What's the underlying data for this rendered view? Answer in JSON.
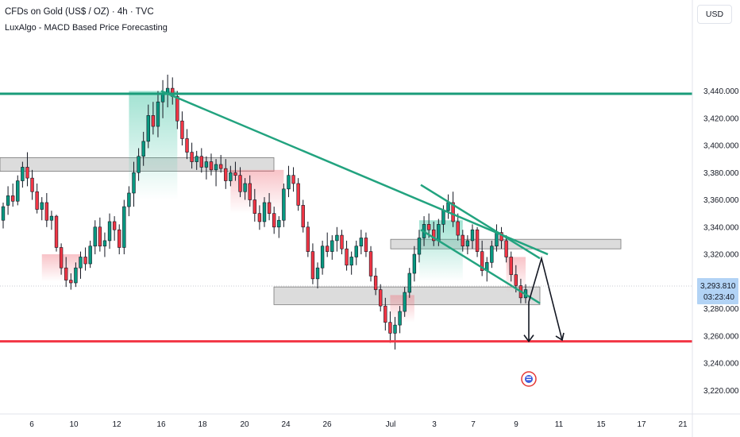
{
  "header": {
    "title": "CFDs on Gold (US$ / OZ) · 4h · TVC",
    "indicator": "LuxAlgo - MACD Based Price Forecasting"
  },
  "currency_button": "USD",
  "price_badge": {
    "price": "3,293.810",
    "countdown": "03:23:40"
  },
  "colors": {
    "up": "#089981",
    "down": "#f23645",
    "trendline": "#22a37f",
    "resistance": "#1a9c7a",
    "support": "#f23645",
    "zone": "#d6d6d6",
    "badge": "#b2d3f5",
    "bull_fill": "#2fbf9b",
    "bear_fill": "#f07a84"
  },
  "chart_data": {
    "type": "candlestick",
    "timeframe": "4h",
    "y_range": [
      3212,
      3466
    ],
    "y_ticks": [
      "3,440.000",
      "3,420.000",
      "3,400.000",
      "3,380.000",
      "3,360.000",
      "3,340.000",
      "3,320.000",
      "3,300.000",
      "3,280.000",
      "3,260.000",
      "3,240.000",
      "3,220.000"
    ],
    "x_ticks": [
      "6",
      "10",
      "12",
      "16",
      "18",
      "20",
      "24",
      "26",
      "Jul",
      "3",
      "7",
      "9",
      "11",
      "15",
      "17",
      "21"
    ],
    "horizontal_levels": [
      {
        "role": "resistance",
        "price": 3438
      },
      {
        "role": "support",
        "price": 3256
      }
    ],
    "zones": [
      {
        "from": "start",
        "to": "Jun 23",
        "price_low": 3381,
        "price_high": 3391
      },
      {
        "from": "Jun 23",
        "to": "Jul 10",
        "price_low": 3283,
        "price_high": 3296
      },
      {
        "from": "Jul 1",
        "to": "Jul 13",
        "price_low": 3324,
        "price_high": 3331
      }
    ],
    "trendlines": [
      {
        "from": [
          "Jun 16",
          3440
        ],
        "to": [
          "Jul 10",
          3320
        ]
      },
      {
        "from": [
          "Jun 30",
          3371
        ],
        "to": [
          "Jul 10",
          3317
        ]
      },
      {
        "from": [
          "Jun 30",
          3338
        ],
        "to": [
          "Jul 10",
          3284
        ]
      }
    ],
    "projection_arrows": [
      {
        "path": [
          [
            "Jul 10",
            3285
          ],
          [
            "Jul 10",
            3256
          ]
        ]
      },
      {
        "path": [
          [
            "Jul 10",
            3285
          ],
          [
            "Jul 10",
            3317
          ],
          [
            "Jul 11",
            3257
          ]
        ]
      }
    ],
    "candles": [
      [
        3345,
        3358,
        3339,
        3355
      ],
      [
        3356,
        3370,
        3349,
        3363
      ],
      [
        3363,
        3372,
        3355,
        3359
      ],
      [
        3359,
        3378,
        3356,
        3374
      ],
      [
        3374,
        3388,
        3369,
        3384
      ],
      [
        3384,
        3395,
        3370,
        3376
      ],
      [
        3376,
        3382,
        3360,
        3366
      ],
      [
        3366,
        3372,
        3350,
        3353
      ],
      [
        3353,
        3362,
        3345,
        3358
      ],
      [
        3358,
        3365,
        3340,
        3345
      ],
      [
        3345,
        3352,
        3338,
        3348
      ],
      [
        3348,
        3349,
        3322,
        3325
      ],
      [
        3325,
        3328,
        3305,
        3310
      ],
      [
        3310,
        3318,
        3296,
        3301
      ],
      [
        3301,
        3306,
        3294,
        3299
      ],
      [
        3299,
        3314,
        3296,
        3310
      ],
      [
        3310,
        3322,
        3302,
        3318
      ],
      [
        3318,
        3325,
        3308,
        3313
      ],
      [
        3313,
        3330,
        3310,
        3326
      ],
      [
        3326,
        3345,
        3320,
        3340
      ],
      [
        3340,
        3347,
        3322,
        3326
      ],
      [
        3326,
        3336,
        3318,
        3330
      ],
      [
        3330,
        3350,
        3324,
        3344
      ],
      [
        3344,
        3348,
        3330,
        3338
      ],
      [
        3338,
        3342,
        3320,
        3325
      ],
      [
        3325,
        3360,
        3320,
        3355
      ],
      [
        3355,
        3370,
        3348,
        3365
      ],
      [
        3365,
        3388,
        3355,
        3380
      ],
      [
        3380,
        3398,
        3374,
        3392
      ],
      [
        3392,
        3410,
        3385,
        3403
      ],
      [
        3403,
        3430,
        3398,
        3422
      ],
      [
        3422,
        3432,
        3408,
        3414
      ],
      [
        3414,
        3440,
        3406,
        3432
      ],
      [
        3432,
        3448,
        3420,
        3438
      ],
      [
        3438,
        3452,
        3428,
        3442
      ],
      [
        3442,
        3450,
        3430,
        3436
      ],
      [
        3436,
        3440,
        3412,
        3418
      ],
      [
        3418,
        3425,
        3400,
        3405
      ],
      [
        3405,
        3412,
        3390,
        3395
      ],
      [
        3395,
        3402,
        3383,
        3388
      ],
      [
        3388,
        3396,
        3382,
        3392
      ],
      [
        3392,
        3398,
        3380,
        3384
      ],
      [
        3384,
        3392,
        3375,
        3388
      ],
      [
        3388,
        3394,
        3378,
        3382
      ],
      [
        3382,
        3390,
        3370,
        3386
      ],
      [
        3386,
        3393,
        3380,
        3383
      ],
      [
        3383,
        3390,
        3368,
        3374
      ],
      [
        3374,
        3385,
        3370,
        3380
      ],
      [
        3380,
        3388,
        3374,
        3378
      ],
      [
        3378,
        3384,
        3362,
        3366
      ],
      [
        3366,
        3376,
        3360,
        3372
      ],
      [
        3372,
        3378,
        3355,
        3360
      ],
      [
        3360,
        3368,
        3344,
        3350
      ],
      [
        3350,
        3356,
        3338,
        3344
      ],
      [
        3344,
        3362,
        3340,
        3358
      ],
      [
        3358,
        3365,
        3345,
        3350
      ],
      [
        3350,
        3355,
        3335,
        3340
      ],
      [
        3340,
        3348,
        3332,
        3345
      ],
      [
        3345,
        3372,
        3340,
        3368
      ],
      [
        3368,
        3385,
        3362,
        3378
      ],
      [
        3378,
        3384,
        3366,
        3372
      ],
      [
        3372,
        3376,
        3352,
        3356
      ],
      [
        3356,
        3360,
        3336,
        3340
      ],
      [
        3340,
        3344,
        3318,
        3322
      ],
      [
        3322,
        3328,
        3298,
        3302
      ],
      [
        3302,
        3314,
        3295,
        3310
      ],
      [
        3310,
        3330,
        3305,
        3326
      ],
      [
        3326,
        3336,
        3318,
        3322
      ],
      [
        3322,
        3334,
        3316,
        3330
      ],
      [
        3330,
        3340,
        3322,
        3334
      ],
      [
        3334,
        3338,
        3320,
        3324
      ],
      [
        3324,
        3330,
        3308,
        3312
      ],
      [
        3312,
        3322,
        3305,
        3318
      ],
      [
        3318,
        3330,
        3312,
        3326
      ],
      [
        3326,
        3338,
        3320,
        3332
      ],
      [
        3332,
        3336,
        3318,
        3322
      ],
      [
        3322,
        3326,
        3300,
        3304
      ],
      [
        3304,
        3310,
        3290,
        3294
      ],
      [
        3294,
        3298,
        3278,
        3282
      ],
      [
        3282,
        3288,
        3264,
        3270
      ],
      [
        3270,
        3278,
        3255,
        3262
      ],
      [
        3262,
        3274,
        3250,
        3268
      ],
      [
        3268,
        3282,
        3262,
        3278
      ],
      [
        3278,
        3296,
        3274,
        3292
      ],
      [
        3292,
        3310,
        3288,
        3306
      ],
      [
        3306,
        3326,
        3300,
        3320
      ],
      [
        3320,
        3338,
        3314,
        3332
      ],
      [
        3332,
        3348,
        3326,
        3342
      ],
      [
        3342,
        3350,
        3332,
        3338
      ],
      [
        3338,
        3344,
        3326,
        3330
      ],
      [
        3330,
        3346,
        3326,
        3342
      ],
      [
        3342,
        3356,
        3336,
        3352
      ],
      [
        3352,
        3364,
        3346,
        3358
      ],
      [
        3358,
        3366,
        3340,
        3344
      ],
      [
        3344,
        3350,
        3330,
        3334
      ],
      [
        3334,
        3338,
        3322,
        3326
      ],
      [
        3326,
        3334,
        3320,
        3330
      ],
      [
        3330,
        3342,
        3324,
        3338
      ],
      [
        3338,
        3340,
        3318,
        3322
      ],
      [
        3322,
        3330,
        3304,
        3308
      ],
      [
        3308,
        3318,
        3300,
        3314
      ],
      [
        3314,
        3330,
        3310,
        3326
      ],
      [
        3326,
        3342,
        3322,
        3336
      ],
      [
        3336,
        3340,
        3324,
        3330
      ],
      [
        3330,
        3334,
        3314,
        3318
      ],
      [
        3318,
        3322,
        3300,
        3305
      ],
      [
        3305,
        3312,
        3292,
        3297
      ],
      [
        3297,
        3302,
        3284,
        3288
      ],
      [
        3288,
        3298,
        3284,
        3294
      ]
    ]
  }
}
